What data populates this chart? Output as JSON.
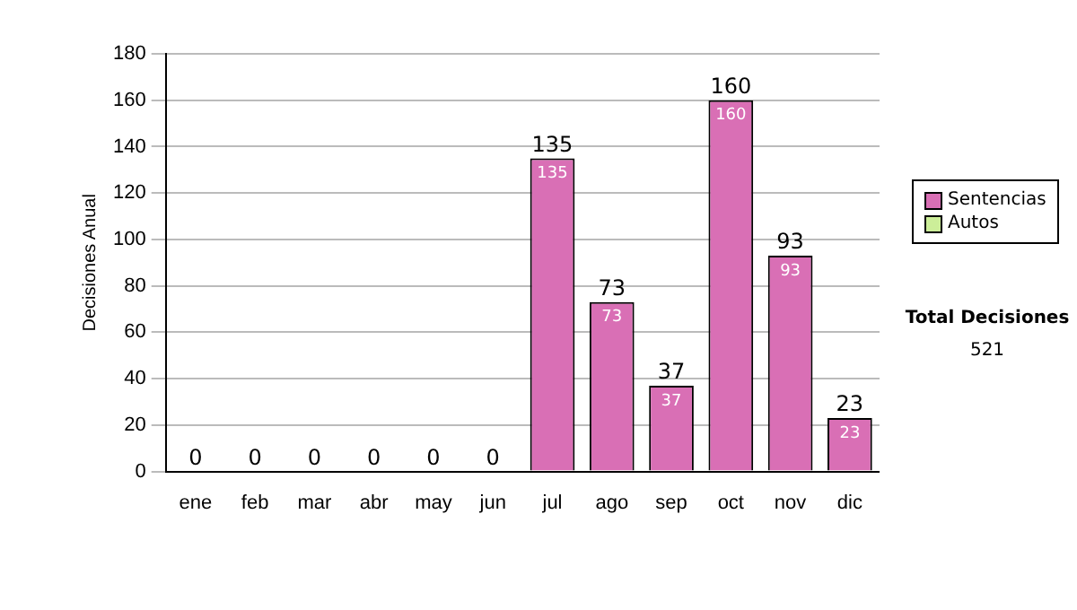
{
  "chart_data": {
    "type": "bar",
    "ylabel": "Decisiones Anual",
    "categories": [
      "ene",
      "feb",
      "mar",
      "abr",
      "may",
      "jun",
      "jul",
      "ago",
      "sep",
      "oct",
      "nov",
      "dic"
    ],
    "stacked": true,
    "series": [
      {
        "name": "Sentencias",
        "color": "#d96fb5",
        "values": [
          0,
          0,
          0,
          0,
          0,
          0,
          135,
          73,
          37,
          160,
          93,
          23
        ],
        "value_labels": [
          null,
          null,
          null,
          null,
          null,
          null,
          "135",
          "73",
          "37",
          "160",
          "93",
          "23"
        ]
      },
      {
        "name": "Autos",
        "color": "#ccee99",
        "values": [
          0,
          0,
          0,
          0,
          0,
          0,
          0,
          0,
          0,
          0,
          0,
          0
        ]
      }
    ],
    "totals": [
      "0",
      "0",
      "0",
      "0",
      "0",
      "0",
      "135",
      "73",
      "37",
      "160",
      "93",
      "23"
    ],
    "ylim": [
      0,
      180
    ],
    "yticks": [
      0,
      20,
      40,
      60,
      80,
      100,
      120,
      140,
      160,
      180
    ],
    "grid": "y",
    "legend": "right",
    "annotations": [
      "Total Decisiones",
      "521"
    ]
  }
}
